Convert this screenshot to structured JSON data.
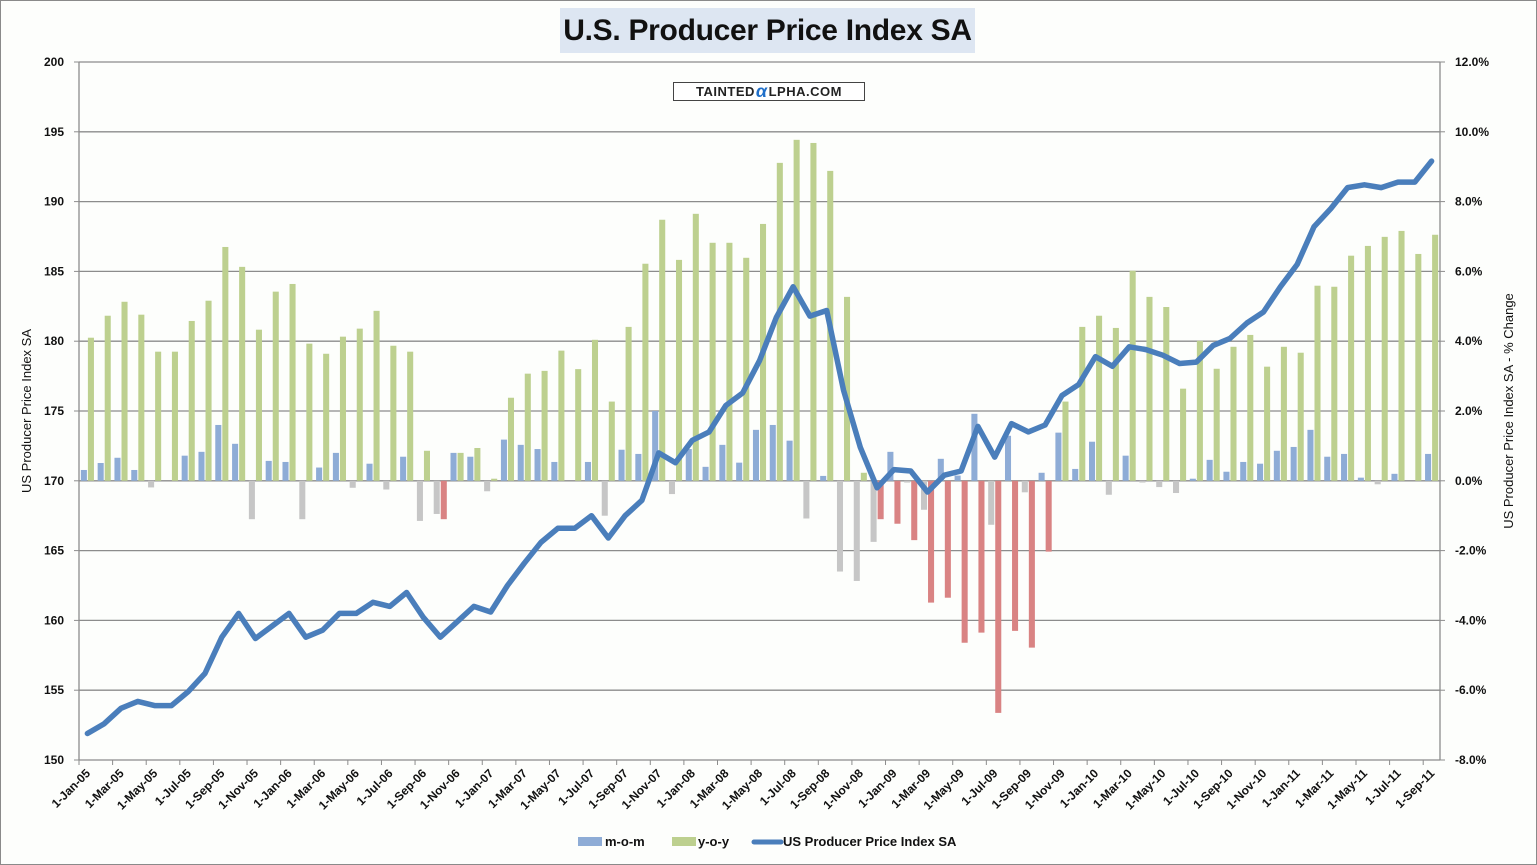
{
  "logo": {
    "left": "TAINTED",
    "alpha": "α",
    "right": "LPHA.COM"
  },
  "chart_data": {
    "type": "bar+line",
    "title": "U.S. Producer Price Index SA",
    "ylabel_left": "US Producer Price Index SA",
    "ylabel_right": "US Producer Price Index SA - % Change",
    "ylim_left": [
      150,
      200
    ],
    "ylim_right": [
      -8.0,
      12.0
    ],
    "yticks_left": [
      "200",
      "195",
      "190",
      "185",
      "180",
      "175",
      "170",
      "165",
      "160",
      "155",
      "150"
    ],
    "yticks_right": [
      "12.0%",
      "10.0%",
      "8.0%",
      "6.0%",
      "4.0%",
      "2.0%",
      "0.0%",
      "-2.0%",
      "-4.0%",
      "-6.0%",
      "-8.0%"
    ],
    "grid": true,
    "legend_position": "bottom",
    "legend": [
      "m-o-m",
      "y-o-y",
      "US Producer Price Index SA"
    ],
    "colors": {
      "mom": "#8eacd6",
      "yoy": "#bdd08f",
      "line": "#4a7ebb",
      "negative_mom": "#c6c6c6",
      "negative_yoy": "#d98383"
    },
    "x_tick_labels": [
      "1-Jan-05",
      "1-Mar-05",
      "1-May-05",
      "1-Jul-05",
      "1-Sep-05",
      "1-Nov-05",
      "1-Jan-06",
      "1-Mar-06",
      "1-May-06",
      "1-Jul-06",
      "1-Sep-06",
      "1-Nov-06",
      "1-Jan-07",
      "1-Mar-07",
      "1-May-07",
      "1-Jul-07",
      "1-Sep-07",
      "1-Nov-07",
      "1-Jan-08",
      "1-Mar-08",
      "1-May-08",
      "1-Jul-08",
      "1-Sep-08",
      "1-Nov-08",
      "1-Jan-09",
      "1-Mar-09",
      "1-May-09",
      "1-Jul-09",
      "1-Sep-09",
      "1-Nov-09",
      "1-Jan-10",
      "1-Mar-10",
      "1-May-10",
      "1-Jul-10",
      "1-Sep-10",
      "1-Nov-10",
      "1-Jan-11",
      "1-Mar-11",
      "1-May-11",
      "1-Jul-11",
      "1-Sep-11"
    ],
    "categories_start": "2005-01",
    "categories_count": 81,
    "series": [
      {
        "name": "m-o-m",
        "axis": "right",
        "type": "bar",
        "unit": "%",
        "values": [
          0.31,
          0.51,
          0.66,
          0.31,
          -0.19,
          0.0,
          0.72,
          0.83,
          1.6,
          1.06,
          -1.1,
          0.57,
          0.54,
          -1.1,
          0.38,
          0.8,
          -0.2,
          0.49,
          -0.25,
          0.69,
          -1.15,
          -0.95,
          0.8,
          0.69,
          -0.3,
          1.18,
          1.03,
          0.91,
          0.54,
          0.0,
          0.54,
          -1.0,
          0.89,
          0.77,
          2.0,
          -0.38,
          0.91,
          0.4,
          1.03,
          0.52,
          1.46,
          1.6,
          1.15,
          -1.08,
          0.14,
          -2.6,
          -2.87,
          -1.75,
          0.83,
          -0.05,
          -0.83,
          0.63,
          0.15,
          1.92,
          -1.26,
          1.29,
          -0.33,
          0.23,
          1.38,
          0.34,
          1.12,
          -0.4,
          0.72,
          -0.05,
          -0.18,
          -0.35,
          0.06,
          0.6,
          0.26,
          0.54,
          0.49,
          0.86,
          0.97,
          1.46,
          0.69,
          0.77,
          0.09,
          -0.1,
          0.2,
          0.0,
          0.77
        ]
      },
      {
        "name": "y-o-y",
        "axis": "right",
        "type": "bar",
        "unit": "%",
        "values": [
          4.1,
          4.73,
          5.13,
          4.76,
          3.7,
          3.7,
          4.58,
          5.16,
          6.7,
          6.13,
          4.33,
          5.42,
          5.64,
          3.93,
          3.64,
          4.13,
          4.36,
          4.87,
          3.87,
          3.7,
          0.86,
          -1.1,
          0.8,
          0.94,
          0.06,
          2.38,
          3.07,
          3.15,
          3.73,
          3.2,
          4.04,
          2.27,
          4.41,
          6.22,
          7.48,
          6.33,
          7.65,
          6.82,
          6.82,
          6.39,
          7.36,
          9.11,
          9.77,
          9.68,
          8.88,
          5.27,
          0.23,
          -1.1,
          -1.23,
          -1.7,
          -3.49,
          -3.35,
          -4.64,
          -4.35,
          -6.65,
          -4.3,
          -4.78,
          -2.03,
          2.27,
          4.41,
          4.73,
          4.38,
          6.02,
          5.27,
          4.98,
          2.64,
          4.01,
          3.21,
          3.84,
          4.18,
          3.27,
          3.84,
          3.67,
          5.59,
          5.56,
          6.45,
          6.73,
          6.99,
          7.16,
          6.5,
          7.05
        ]
      },
      {
        "name": "US Producer Price Index SA",
        "axis": "left",
        "type": "line",
        "values": [
          151.9,
          152.6,
          153.7,
          154.2,
          153.9,
          153.9,
          154.9,
          156.2,
          158.8,
          160.5,
          158.7,
          159.6,
          160.5,
          158.8,
          159.3,
          160.5,
          160.5,
          161.3,
          161.0,
          162.0,
          160.2,
          158.8,
          159.9,
          161.0,
          160.6,
          162.5,
          164.1,
          165.6,
          166.6,
          166.6,
          167.5,
          165.9,
          167.5,
          168.6,
          172.0,
          171.3,
          172.9,
          173.5,
          175.4,
          176.3,
          178.6,
          181.7,
          183.9,
          181.8,
          182.2,
          176.5,
          172.4,
          169.5,
          170.8,
          170.7,
          169.2,
          170.4,
          170.7,
          173.9,
          171.7,
          174.1,
          173.5,
          174.0,
          176.1,
          176.9,
          178.9,
          178.2,
          179.6,
          179.4,
          179.0,
          178.4,
          178.5,
          179.7,
          180.2,
          181.3,
          182.1,
          183.9,
          185.5,
          188.2,
          189.5,
          191.0,
          191.2,
          191.0,
          191.4,
          191.4,
          192.9
        ]
      }
    ]
  }
}
